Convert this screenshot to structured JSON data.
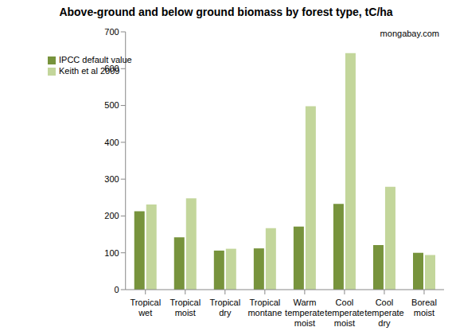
{
  "chart_data": {
    "type": "bar",
    "title": "Above-ground and below ground biomass by forest type, tC/ha",
    "annotation": "mongabay.com",
    "categories": [
      "Tropical wet",
      "Tropical moist",
      "Tropical dry",
      "Tropical montane",
      "Warm temperate moist",
      "Cool temperate moist",
      "Cool temperate dry",
      "Boreal moist"
    ],
    "series": [
      {
        "name": "IPCC default value",
        "color": "#77933c",
        "values": [
          213,
          142,
          106,
          112,
          171,
          233,
          121,
          100
        ]
      },
      {
        "name": "Keith et al 2009",
        "color": "#c3d69b",
        "values": [
          231,
          248,
          111,
          167,
          498,
          642,
          279,
          94
        ]
      }
    ],
    "ylim": [
      0,
      700
    ],
    "yticks": [
      0,
      100,
      200,
      300,
      400,
      500,
      600,
      700
    ],
    "grid": false,
    "legend": "top-left"
  }
}
